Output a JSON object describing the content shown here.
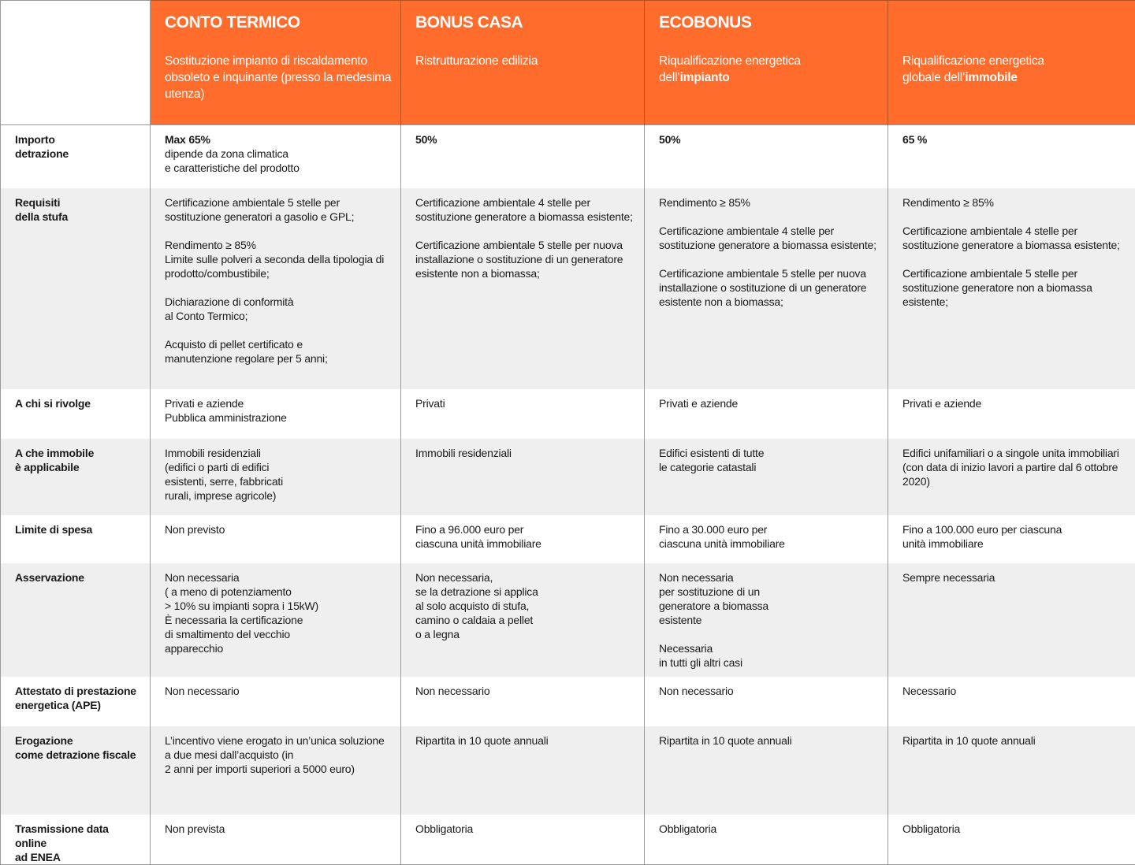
{
  "header": {
    "columns": [
      {
        "title": "CONTO TERMICO",
        "subtitle": "Sostituzione impianto di riscaldamento obsoleto e inquinante (presso la medesima utenza)",
        "subtitle_bold": ""
      },
      {
        "title": "BONUS CASA",
        "subtitle": "Ristrutturazione edilizia",
        "subtitle_bold": ""
      },
      {
        "title": "ECOBONUS",
        "subtitle": "Riqualificazione energetica\ndell’",
        "subtitle_bold": "impianto"
      },
      {
        "title": "",
        "subtitle": "Riqualificazione energetica\nglobale dell’",
        "subtitle_bold": "immobile"
      }
    ]
  },
  "rows": [
    {
      "label": "Importo\ndetrazione",
      "cells": [
        {
          "lead": "Max 65%",
          "text": "dipende da zona climatica\ne caratteristiche del prodotto"
        },
        {
          "lead": "50%",
          "text": ""
        },
        {
          "lead": "50%",
          "text": ""
        },
        {
          "lead": "65 %",
          "text": ""
        }
      ]
    },
    {
      "label": "Requisiti\ndella stufa",
      "cells": [
        {
          "lead": "",
          "text": "Certificazione ambientale 5 stelle per sostituzione generatori a gasolio e GPL;\n\nRendimento ≥ 85%\nLimite sulle polveri a seconda della tipologia di prodotto/combustibile;\n\nDichiarazione di conformità\nal Conto Termico;\n\nAcquisto di pellet certificato e\nmanutenzione regolare per 5 anni;"
        },
        {
          "lead": "",
          "text": "Certificazione ambientale 4 stelle per sostituzione generatore a biomassa esistente;\n\nCertificazione ambientale 5 stelle per nuova installazione o sostituzione di un generatore esistente non a biomassa;"
        },
        {
          "lead": "",
          "text": "Rendimento ≥ 85%\n\nCertificazione ambientale 4 stelle per sostituzione generatore a biomassa esistente;\n\nCertificazione ambientale 5 stelle per nuova installazione o sostituzione di un generatore esistente non a biomassa;"
        },
        {
          "lead": "",
          "text": "Rendimento ≥ 85%\n\nCertificazione ambientale 4 stelle per sostituzione generatore a biomassa esistente;\n\nCertificazione ambientale 5 stelle per sostituzione generatore non a biomassa esistente;"
        }
      ]
    },
    {
      "label": "A chi si rivolge",
      "cells": [
        {
          "lead": "",
          "text": "Privati e aziende\nPubblica amministrazione"
        },
        {
          "lead": "",
          "text": "Privati"
        },
        {
          "lead": "",
          "text": "Privati e aziende"
        },
        {
          "lead": "",
          "text": "Privati e aziende"
        }
      ]
    },
    {
      "label": "A che immobile\nè applicabile",
      "cells": [
        {
          "lead": "",
          "text": "Immobili residenziali\n(edifici o parti di edifici\nesistenti, serre, fabbricati\nrurali, imprese agricole)"
        },
        {
          "lead": "",
          "text": "Immobili residenziali"
        },
        {
          "lead": "",
          "text": "Edifici esistenti di tutte\nle categorie catastali"
        },
        {
          "lead": "",
          "text": "Edifici unifamiliari o a singole unita immobiliari (con data di inizio lavori  a partire dal 6 ottobre 2020)"
        }
      ]
    },
    {
      "label": "Limite di spesa",
      "cells": [
        {
          "lead": "",
          "text": "Non previsto"
        },
        {
          "lead": "",
          "text": "Fino a 96.000 euro per\nciascuna unità immobiliare"
        },
        {
          "lead": "",
          "text": "Fino a 30.000 euro per\nciascuna unità immobiliare"
        },
        {
          "lead": "",
          "text": "Fino a 100.000 euro per  ciascuna\nunità immobiliare"
        }
      ]
    },
    {
      "label": "Asservazione",
      "cells": [
        {
          "lead": "",
          "text": "Non necessaria\n( a meno di potenziamento\n> 10% su impianti sopra i 15kW)\nÈ necessaria la certificazione\ndi smaltimento del vecchio\napparecchio"
        },
        {
          "lead": "",
          "text": "Non necessaria,\nse la detrazione si applica\nal solo acquisto di stufa,\ncamino o caldaia a pellet\no a legna"
        },
        {
          "lead": "",
          "text": "Non necessaria\nper sostituzione di un\ngeneratore a biomassa\nesistente\n\nNecessaria\nin tutti gli altri casi"
        },
        {
          "lead": "",
          "text": "Sempre necessaria"
        }
      ]
    },
    {
      "label": "Attestato di prestazione\nenergetica (APE)",
      "cells": [
        {
          "lead": "",
          "text": "Non necessario"
        },
        {
          "lead": "",
          "text": "Non necessario"
        },
        {
          "lead": "",
          "text": "Non necessario"
        },
        {
          "lead": "",
          "text": "Necessario"
        }
      ]
    },
    {
      "label": "Erogazione\ncome detrazione fiscale",
      "cells": [
        {
          "lead": "",
          "text": "L’incentivo viene erogato  in un’unica soluzione  a due mesi dall’acquisto  (in\n2 anni per importi  superiori a 5000 euro)"
        },
        {
          "lead": "",
          "text": "Ripartita in 10 quote annuali"
        },
        {
          "lead": "",
          "text": "Ripartita in 10 quote annuali"
        },
        {
          "lead": "",
          "text": "Ripartita in 10 quote annuali"
        }
      ]
    },
    {
      "label": "Trasmissione data online\nad ENEA",
      "cells": [
        {
          "lead": "",
          "text": "Non prevista"
        },
        {
          "lead": "",
          "text": "Obbligatoria"
        },
        {
          "lead": "",
          "text": "Obbligatoria"
        },
        {
          "lead": "",
          "text": "Obbligatoria"
        }
      ]
    }
  ],
  "colors": {
    "header_bg": "#ff6c2c",
    "stripe_bg": "#efefef"
  }
}
